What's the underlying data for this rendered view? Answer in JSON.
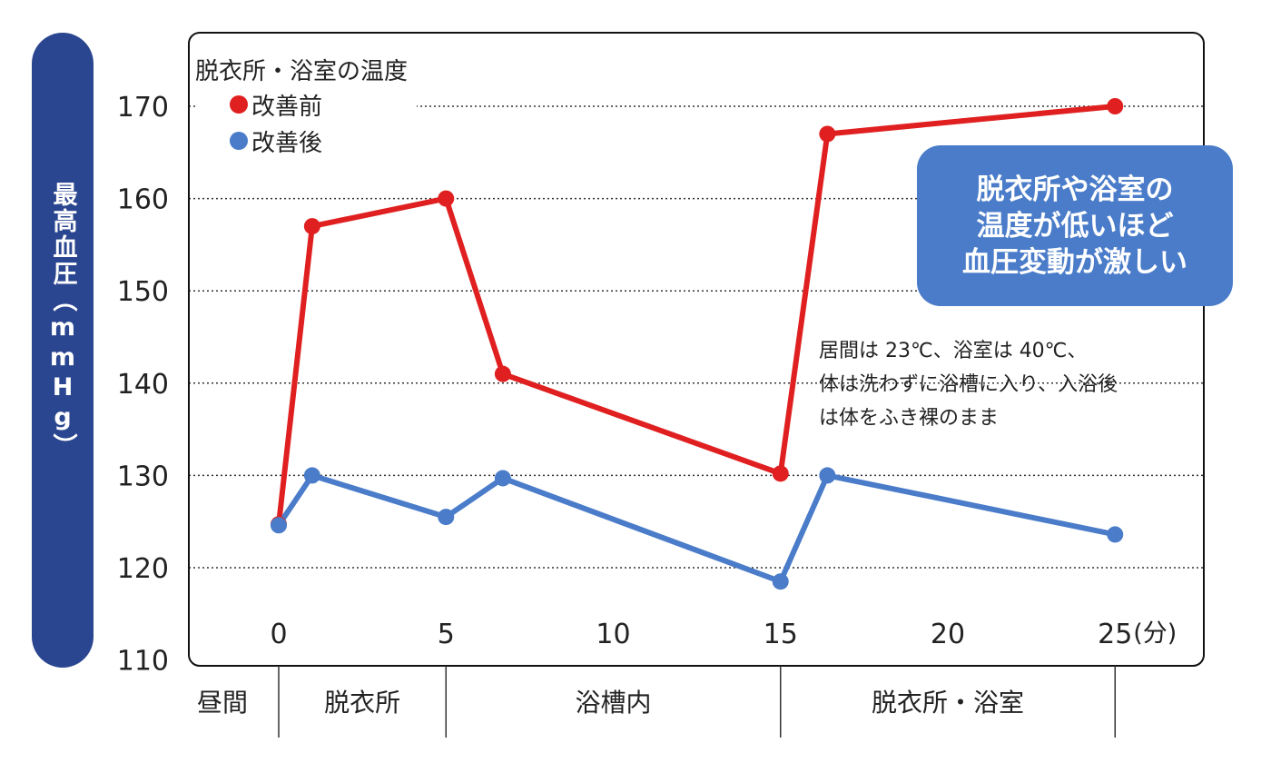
{
  "chart_data": {
    "type": "line",
    "ylabel": "最高血圧（mmHg）",
    "xunit": "(分)",
    "xlim": [
      0,
      25
    ],
    "ylim": [
      110,
      170
    ],
    "yticks": [
      "110",
      "120",
      "130",
      "140",
      "150",
      "160",
      "170"
    ],
    "xticks": [
      "0",
      "5",
      "10",
      "15",
      "20",
      "25"
    ],
    "grid": true,
    "legend_title": "脱衣所・浴室の温度",
    "legend_position": "top-left",
    "series": [
      {
        "name": "改善前",
        "color": "#e02020",
        "x": [
          0,
          1,
          5,
          6.7,
          15,
          16.4,
          25
        ],
        "y": [
          124.7,
          157,
          160,
          141,
          130.2,
          167,
          170
        ]
      },
      {
        "name": "改善後",
        "color": "#4a7cc9",
        "x": [
          0,
          1,
          5,
          6.7,
          15,
          16.4,
          25
        ],
        "y": [
          124.6,
          130,
          125.5,
          129.7,
          118.5,
          130,
          123.6
        ]
      }
    ],
    "phases": [
      {
        "label": "昼間",
        "from": null,
        "to": 0
      },
      {
        "label": "脱衣所",
        "from": 0,
        "to": 5
      },
      {
        "label": "浴槽内",
        "from": 5,
        "to": 15
      },
      {
        "label": "脱衣所・浴室",
        "from": 15,
        "to": 25
      }
    ],
    "callout": [
      "脱衣所や浴室の",
      "温度が低いほど",
      "血圧変動が激しい"
    ],
    "note": [
      "居間は 23℃、浴室は 40℃、",
      "体は洗わずに浴槽に入り、入浴後",
      "は体をふき裸のまま"
    ]
  }
}
